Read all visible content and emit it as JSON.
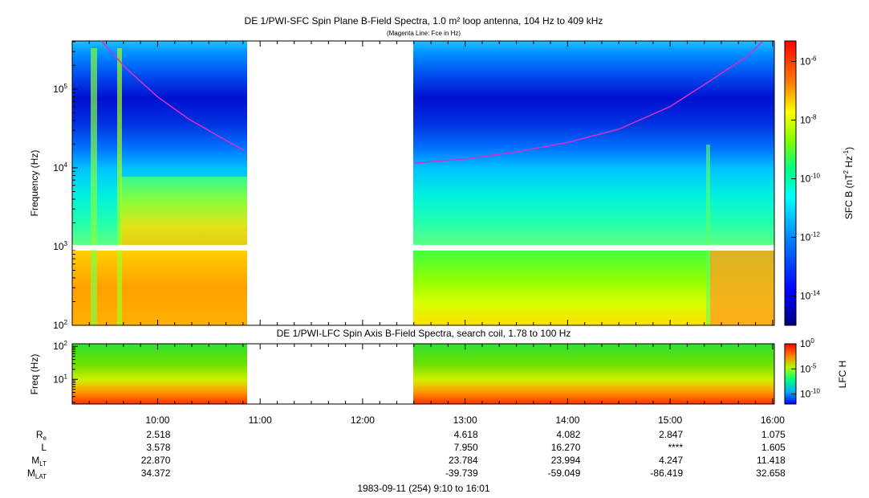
{
  "chart_data": [
    {
      "type": "heatmap",
      "title": "DE 1/PWI-SFC  Spin Plane B-Field Spectra, 1.0 m² loop antenna, 104 Hz to 409 kHz",
      "subtitle": "(Magenta Line: Fce in Hz)",
      "ylabel": "Frequency (Hz)",
      "yscale": "log",
      "ylim": [
        100,
        409000
      ],
      "yticks": [
        {
          "v": 100,
          "m": "10",
          "e": "2"
        },
        {
          "v": 1000,
          "m": "10",
          "e": "3"
        },
        {
          "v": 10000,
          "m": "10",
          "e": "4"
        },
        {
          "v": 100000,
          "m": "10",
          "e": "5"
        }
      ],
      "xlim_hours": [
        9.1667,
        16.0167
      ],
      "data_gap_hours": [
        10.85,
        12.5
      ],
      "band_gap_hz": [
        900,
        1050
      ],
      "colorbar": {
        "label": "SFC B (nT² Hz⁻¹)",
        "label_parts": {
          "a": "SFC B (nT",
          "b": "2",
          "c": " Hz",
          "d": "-1",
          "e": ")"
        },
        "scale": "log",
        "range_exp": [
          -15,
          -5.3
        ],
        "ticks": [
          {
            "m": "10",
            "e": "-6",
            "v": -6
          },
          {
            "m": "10",
            "e": "-8",
            "v": -8
          },
          {
            "m": "10",
            "e": "-10",
            "v": -10
          },
          {
            "m": "10",
            "e": "-12",
            "v": -12
          },
          {
            "m": "10",
            "e": "-14",
            "v": -14
          }
        ]
      },
      "fce_line": {
        "color": "#cc33cc",
        "segment1": [
          {
            "t": 9.45,
            "f": 409000
          },
          {
            "t": 9.7,
            "f": 180000
          },
          {
            "t": 10.0,
            "f": 80000
          },
          {
            "t": 10.3,
            "f": 42000
          },
          {
            "t": 10.6,
            "f": 25000
          },
          {
            "t": 10.85,
            "f": 16500
          }
        ],
        "segment2": [
          {
            "t": 12.5,
            "f": 11500
          },
          {
            "t": 13.0,
            "f": 13000
          },
          {
            "t": 13.5,
            "f": 16000
          },
          {
            "t": 14.0,
            "f": 21000
          },
          {
            "t": 14.5,
            "f": 31000
          },
          {
            "t": 15.0,
            "f": 60000
          },
          {
            "t": 15.4,
            "f": 130000
          },
          {
            "t": 15.75,
            "f": 260000
          },
          {
            "t": 15.9,
            "f": 400000
          }
        ]
      }
    },
    {
      "type": "heatmap",
      "title": "DE 1/PWI-LFC  Spin Axis B-Field Spectra, search coil, 1.78 to 100 Hz",
      "ylabel": "Freq (Hz)",
      "yscale": "log",
      "ylim": [
        1.78,
        120
      ],
      "yticks": [
        {
          "v": 10,
          "m": "10",
          "e": "1"
        },
        {
          "v": 100,
          "m": "10",
          "e": "2"
        }
      ],
      "xlim_hours": [
        9.1667,
        16.0167
      ],
      "data_gap_hours": [
        10.85,
        12.5
      ],
      "colorbar": {
        "label": "LFC H",
        "scale": "log",
        "range_exp": [
          -12,
          0
        ],
        "ticks": [
          {
            "m": "10",
            "e": "0",
            "v": 0
          },
          {
            "m": "10",
            "e": "-5",
            "v": -5
          },
          {
            "m": "10",
            "e": "-10",
            "v": -10
          }
        ]
      }
    }
  ],
  "x_axis": {
    "ticks": [
      {
        "h": 10,
        "label": "10:00"
      },
      {
        "h": 11,
        "label": "11:00"
      },
      {
        "h": 12,
        "label": "12:00"
      },
      {
        "h": 13,
        "label": "13:00"
      },
      {
        "h": 14,
        "label": "14:00"
      },
      {
        "h": 15,
        "label": "15:00"
      },
      {
        "h": 16,
        "label": "16:00"
      }
    ],
    "caption": "1983-09-11 (254) 9:10 to 16:01"
  },
  "ephemeris": {
    "rows": [
      {
        "label": "R",
        "sub": "e",
        "values": [
          "2.518",
          "",
          "",
          "4.618",
          "4.082",
          "2.847",
          "1.075"
        ]
      },
      {
        "label": "L",
        "sub": "",
        "values": [
          "3.578",
          "",
          "",
          "7.950",
          "16.270",
          "****",
          "1.605"
        ]
      },
      {
        "label": "M",
        "sub": "LT",
        "values": [
          "22.870",
          "",
          "",
          "23.784",
          "23.994",
          "4.247",
          "11.418"
        ]
      },
      {
        "label": "M",
        "sub": "LAT",
        "values": [
          "34.372",
          "",
          "",
          "-39.739",
          "-59.049",
          "-86.419",
          "32.658"
        ]
      }
    ]
  }
}
